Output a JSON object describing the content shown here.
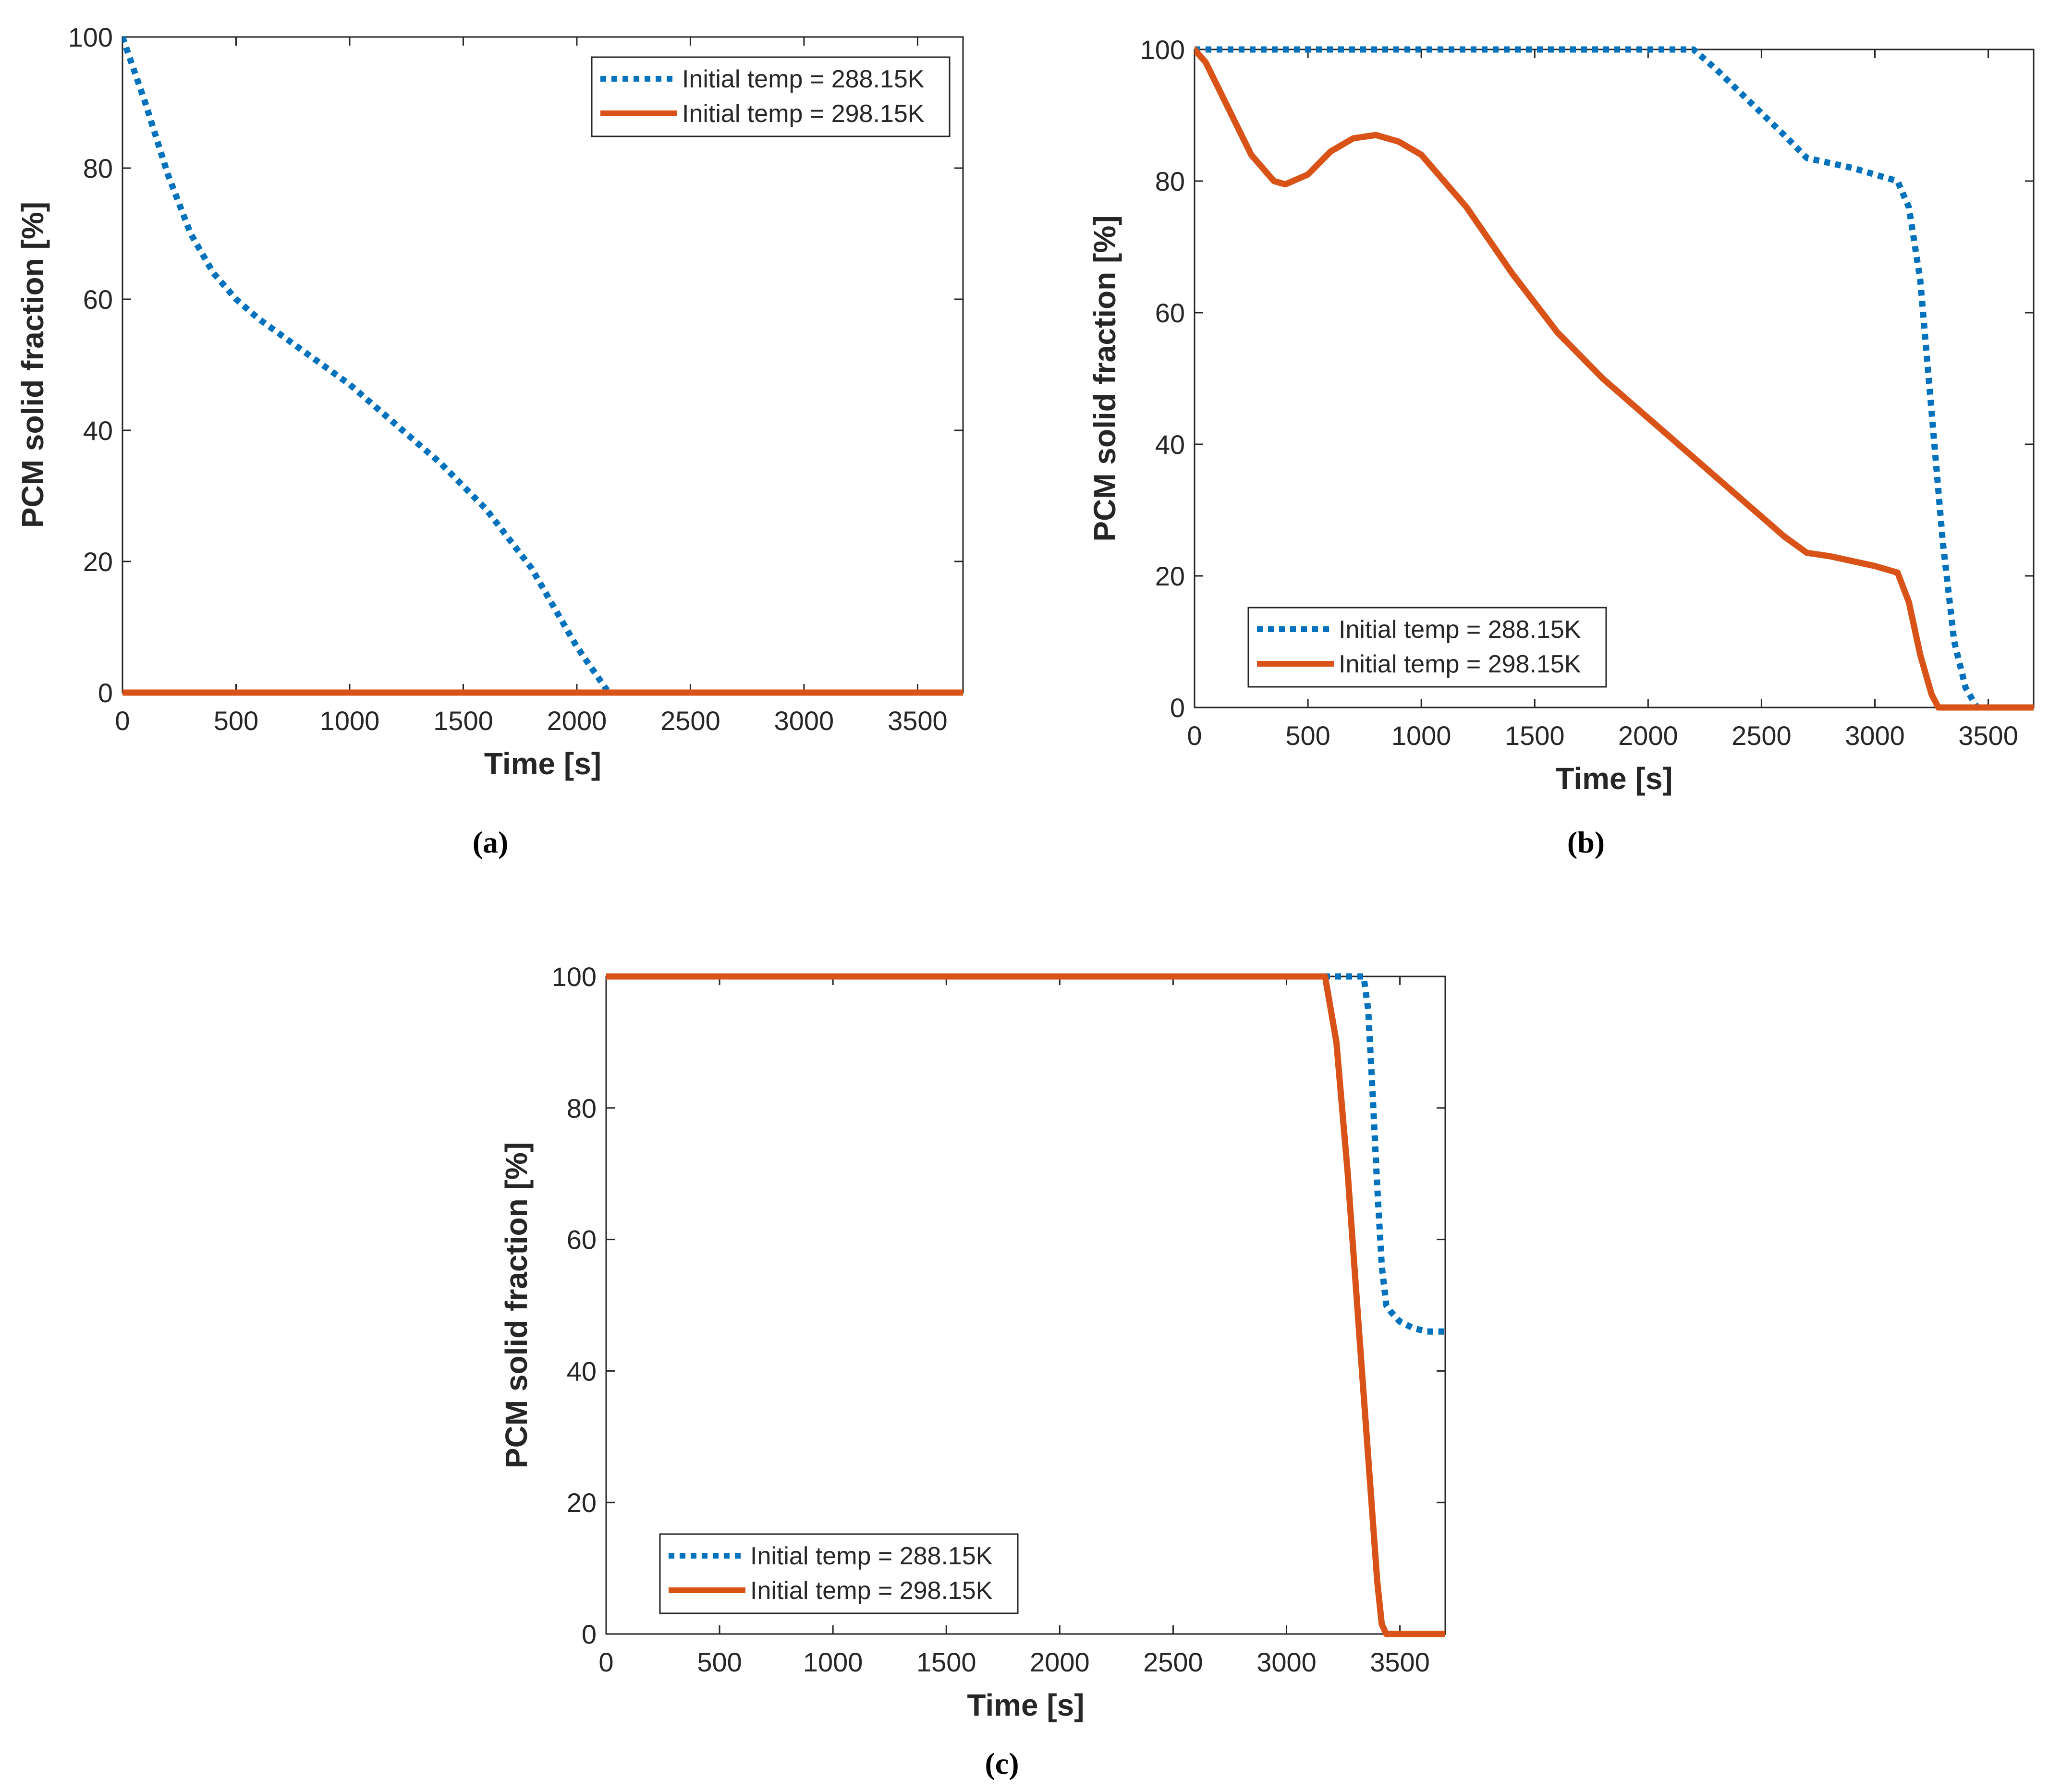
{
  "colors": {
    "series1": "#0072BD",
    "series2": "#D95319",
    "axis": "#262626"
  },
  "chart_data": [
    {
      "id": "a",
      "caption": "(a)",
      "type": "line",
      "xlabel": "Time [s]",
      "ylabel": "PCM solid fraction [%]",
      "xlim": [
        0,
        3700
      ],
      "ylim": [
        0,
        100
      ],
      "xticks": [
        0,
        500,
        1000,
        1500,
        2000,
        2500,
        3000,
        3500
      ],
      "yticks": [
        0,
        20,
        40,
        60,
        80,
        100
      ],
      "legend_position": "top-right",
      "series": [
        {
          "name": "Initial temp = 288.15K",
          "style": "dotted",
          "x": [
            0,
            100,
            200,
            300,
            400,
            500,
            600,
            800,
            1000,
            1200,
            1400,
            1600,
            1800,
            1900,
            2000,
            2100,
            2130,
            2150
          ],
          "y": [
            100,
            90,
            79,
            70,
            64,
            60,
            57,
            52,
            47,
            41,
            35,
            28,
            19,
            13,
            7,
            2,
            0.5,
            0
          ]
        },
        {
          "name": "Initial temp = 298.15K",
          "style": "solid",
          "x": [
            0,
            3700
          ],
          "y": [
            0,
            0
          ]
        }
      ]
    },
    {
      "id": "b",
      "caption": "(b)",
      "type": "line",
      "xlabel": "Time [s]",
      "ylabel": "PCM solid fraction [%]",
      "xlim": [
        0,
        3700
      ],
      "ylim": [
        0,
        100
      ],
      "xticks": [
        0,
        500,
        1000,
        1500,
        2000,
        2500,
        3000,
        3500
      ],
      "yticks": [
        0,
        20,
        40,
        60,
        80,
        100
      ],
      "legend_position": "bottom-left",
      "series": [
        {
          "name": "Initial temp = 288.15K",
          "style": "dotted",
          "x": [
            0,
            2200,
            2300,
            2450,
            2600,
            2700,
            2900,
            3100,
            3150,
            3200,
            3250,
            3300,
            3350,
            3400,
            3450,
            3700
          ],
          "y": [
            100,
            100,
            97,
            92,
            87,
            83.5,
            82,
            80,
            76,
            65,
            45,
            25,
            10,
            3,
            0,
            0
          ]
        },
        {
          "name": "Initial temp = 298.15K",
          "style": "solid",
          "x": [
            0,
            50,
            150,
            250,
            350,
            400,
            500,
            600,
            700,
            800,
            900,
            1000,
            1200,
            1400,
            1600,
            1800,
            2000,
            2200,
            2400,
            2600,
            2700,
            2800,
            3000,
            3100,
            3150,
            3200,
            3250,
            3280,
            3700
          ],
          "y": [
            100,
            98,
            91,
            84,
            80,
            79.5,
            81,
            84.5,
            86.5,
            87,
            86,
            84,
            76,
            66,
            57,
            50,
            44,
            38,
            32,
            26,
            23.5,
            23,
            21.5,
            20.5,
            16,
            8,
            2,
            0,
            0
          ]
        }
      ]
    },
    {
      "id": "c",
      "caption": "(c)",
      "type": "line",
      "xlabel": "Time [s]",
      "ylabel": "PCM solid fraction [%]",
      "xlim": [
        0,
        3700
      ],
      "ylim": [
        0,
        100
      ],
      "xticks": [
        0,
        500,
        1000,
        1500,
        2000,
        2500,
        3000,
        3500
      ],
      "yticks": [
        0,
        20,
        40,
        60,
        80,
        100
      ],
      "legend_position": "bottom-left",
      "series": [
        {
          "name": "Initial temp = 288.15K",
          "style": "dotted",
          "x": [
            0,
            3340,
            3360,
            3380,
            3400,
            3420,
            3440,
            3460,
            3500,
            3560,
            3620,
            3700
          ],
          "y": [
            100,
            100,
            95,
            82,
            68,
            56,
            50,
            49,
            47.5,
            46.5,
            46,
            46
          ]
        },
        {
          "name": "Initial temp = 298.15K",
          "style": "solid",
          "x": [
            0,
            3170,
            3220,
            3270,
            3320,
            3360,
            3400,
            3420,
            3440,
            3700
          ],
          "y": [
            100,
            100,
            90,
            70,
            46,
            27,
            8,
            1.5,
            0,
            0
          ]
        }
      ]
    }
  ]
}
